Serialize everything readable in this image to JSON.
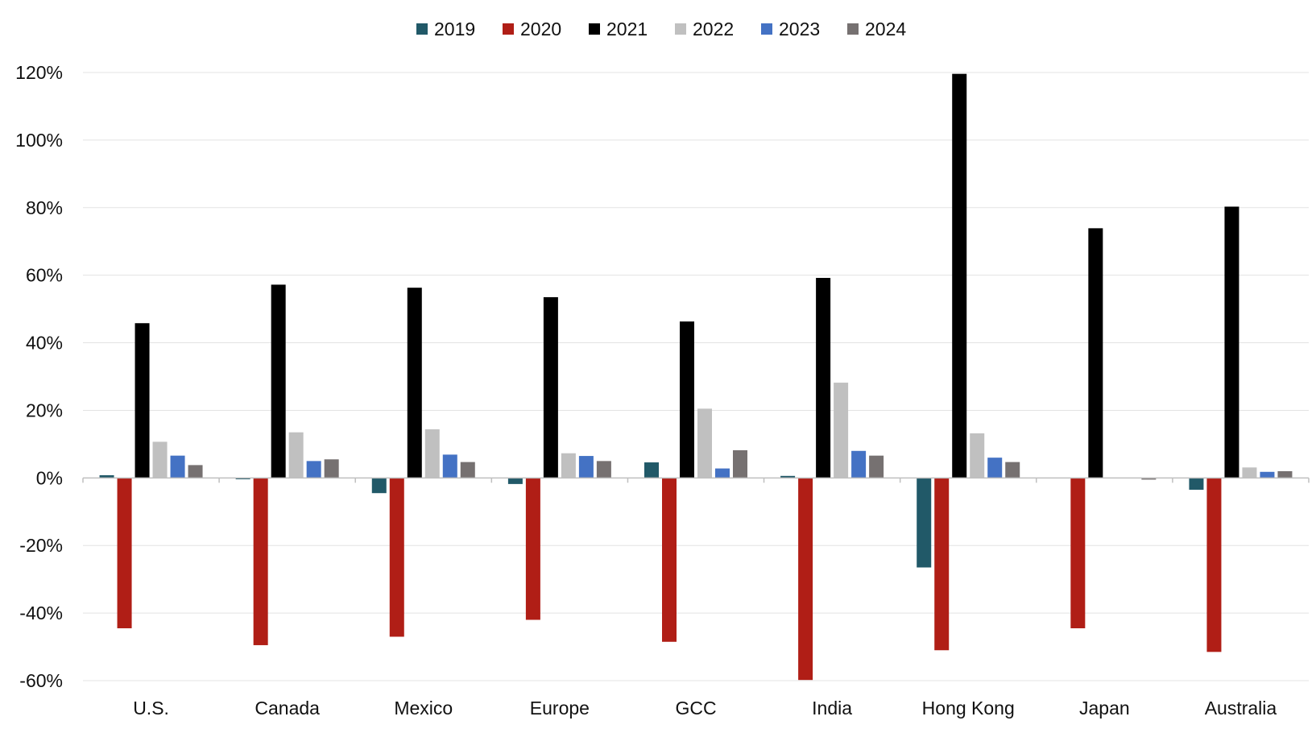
{
  "chart_data": {
    "type": "bar",
    "title": "",
    "xlabel": "",
    "ylabel": "",
    "ylim": [
      -60,
      120
    ],
    "yticks": [
      120,
      100,
      80,
      60,
      40,
      20,
      0,
      -20,
      -40,
      -60
    ],
    "ytick_labels": [
      "120%",
      "100%",
      "80%",
      "60%",
      "40%",
      "20%",
      "0%",
      "-20%",
      "-40%",
      "-60%"
    ],
    "grid": true,
    "legend_position": "top-center",
    "categories": [
      "U.S.",
      "Canada",
      "Mexico",
      "Europe",
      "GCC",
      "India",
      "Hong Kong",
      "Japan",
      "Australia"
    ],
    "series": [
      {
        "name": "2019",
        "color": "#215968",
        "values": [
          0.8,
          -0.4,
          -4.5,
          -1.8,
          4.6,
          0.6,
          -26.5,
          0.0,
          -3.5
        ]
      },
      {
        "name": "2020",
        "color": "#B01E16",
        "values": [
          -44.5,
          -49.5,
          -47.0,
          -42.0,
          -48.5,
          -59.8,
          -51.0,
          -44.5,
          -51.5
        ]
      },
      {
        "name": "2021",
        "color": "#000000",
        "values": [
          45.8,
          57.2,
          56.3,
          53.5,
          46.3,
          59.2,
          119.6,
          73.9,
          80.3
        ]
      },
      {
        "name": "2022",
        "color": "#C0C0C0",
        "values": [
          10.7,
          13.5,
          14.4,
          7.3,
          20.5,
          28.2,
          13.2,
          0.0,
          3.1
        ]
      },
      {
        "name": "2023",
        "color": "#4472C4",
        "values": [
          6.6,
          5.0,
          6.9,
          6.5,
          2.8,
          8.0,
          6.0,
          0.0,
          1.8
        ]
      },
      {
        "name": "2024",
        "color": "#767171",
        "values": [
          3.8,
          5.5,
          4.7,
          5.0,
          8.2,
          6.6,
          4.7,
          -0.5,
          2.0
        ]
      }
    ]
  }
}
